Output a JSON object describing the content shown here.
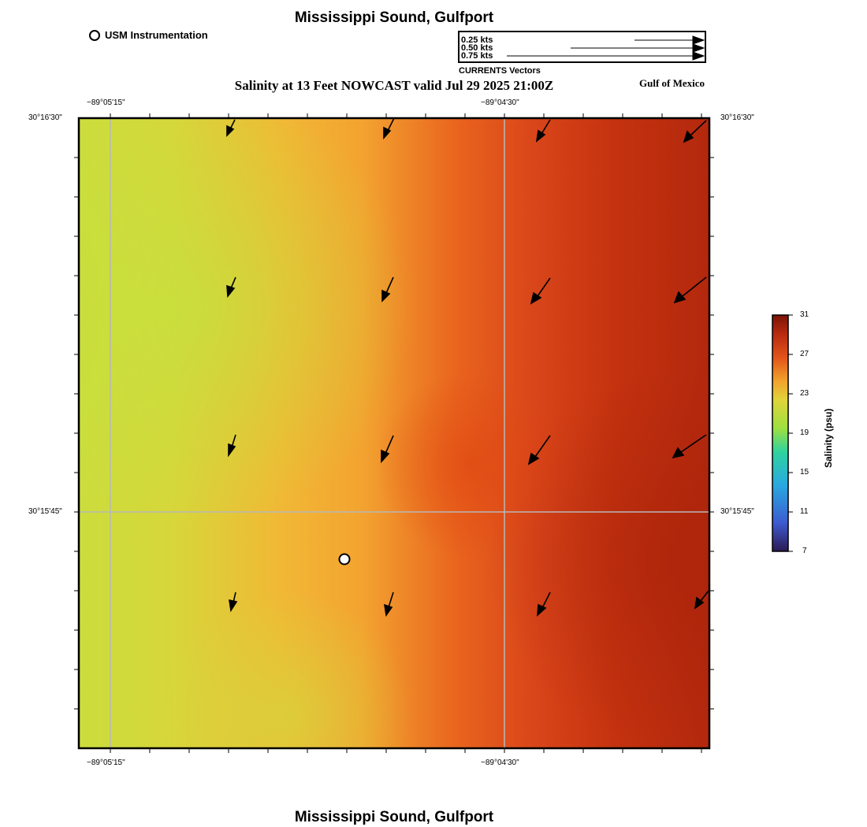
{
  "header": {
    "title": "Mississippi Sound, Gulfport",
    "subtitle": "Salinity at 13 Feet NOWCAST valid Jul 29 2025 21:00Z",
    "region": "Gulf of Mexico"
  },
  "footer": {
    "title": "Mississippi Sound, Gulfport"
  },
  "legend": {
    "station_label": "USM Instrumentation",
    "vector_title": "CURRENTS Vectors",
    "vector_scale": [
      "0.25 kts",
      "0.50 kts",
      "0.75 kts"
    ]
  },
  "axes": {
    "lon_ticks": [
      "−89°05'15\"",
      "−89°04'30\""
    ],
    "lat_ticks": [
      "30°16'30\"",
      "30°15'45\""
    ]
  },
  "colorbar": {
    "title": "Salinity (psu)",
    "ticks": [
      "31",
      "27",
      "23",
      "19",
      "15",
      "11",
      "7"
    ],
    "min": 7,
    "max": 31,
    "colors": [
      "#2b1a52",
      "#3d5bd0",
      "#29a8e0",
      "#2fd3a0",
      "#9de040",
      "#e0d43a",
      "#f2a32c",
      "#e2541a",
      "#b82a10",
      "#7a1405"
    ]
  },
  "station": {
    "name": "USM Instrumentation"
  },
  "field": {
    "parameter": "Salinity",
    "units": "psu",
    "range_shown": [
      19,
      29
    ]
  }
}
